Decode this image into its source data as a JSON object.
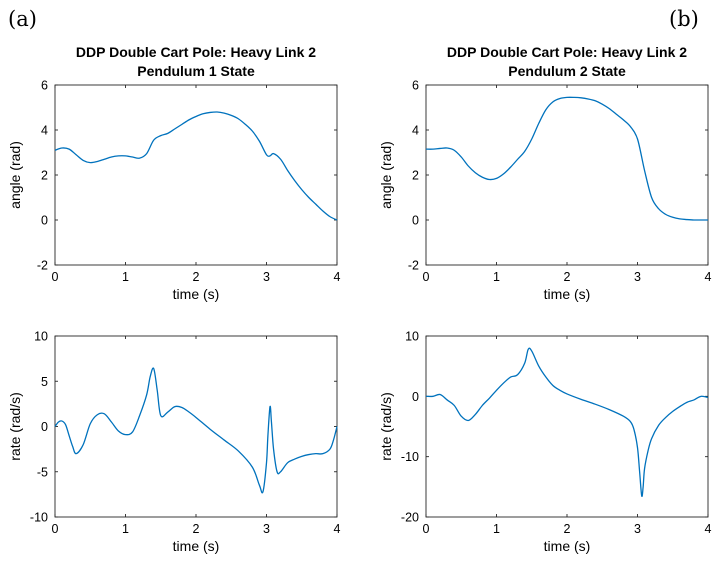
{
  "panel_labels": {
    "left": "(a)",
    "right": "(b)"
  },
  "titles": {
    "left": [
      "DDP Double Cart Pole: Heavy Link 2",
      "Pendulum 1 State"
    ],
    "right": [
      "DDP Double Cart Pole: Heavy Link 2",
      "Pendulum 2 State"
    ]
  },
  "colors": {
    "line": "#0072BD",
    "axes": "#262626"
  },
  "chart_data": [
    {
      "type": "line",
      "title": "DDP Double Cart Pole: Heavy Link 2 Pendulum 1 State",
      "xlabel": "time (s)",
      "ylabel": "angle (rad)",
      "xlim": [
        0,
        4
      ],
      "ylim": [
        -2,
        6
      ],
      "xticks": [
        0,
        1,
        2,
        3,
        4
      ],
      "yticks": [
        -2,
        0,
        2,
        4,
        6
      ],
      "grid": false,
      "x": [
        0,
        0.1,
        0.2,
        0.3,
        0.4,
        0.5,
        0.6,
        0.7,
        0.8,
        0.9,
        1.0,
        1.1,
        1.2,
        1.3,
        1.4,
        1.5,
        1.6,
        1.7,
        1.8,
        1.9,
        2.0,
        2.1,
        2.2,
        2.3,
        2.4,
        2.5,
        2.6,
        2.7,
        2.8,
        2.9,
        3.0,
        3.05,
        3.1,
        3.2,
        3.3,
        3.4,
        3.5,
        3.6,
        3.7,
        3.8,
        3.9,
        4.0
      ],
      "y": [
        3.1,
        3.2,
        3.15,
        2.9,
        2.65,
        2.55,
        2.6,
        2.7,
        2.8,
        2.85,
        2.85,
        2.8,
        2.75,
        2.95,
        3.55,
        3.75,
        3.85,
        4.05,
        4.25,
        4.45,
        4.6,
        4.72,
        4.78,
        4.8,
        4.75,
        4.65,
        4.5,
        4.25,
        3.95,
        3.5,
        2.9,
        2.85,
        2.95,
        2.7,
        2.2,
        1.75,
        1.35,
        1.0,
        0.7,
        0.4,
        0.15,
        0.0
      ]
    },
    {
      "type": "line",
      "title": "DDP Double Cart Pole: Heavy Link 2 Pendulum 2 State",
      "xlabel": "time (s)",
      "ylabel": "angle (rad)",
      "xlim": [
        0,
        4
      ],
      "ylim": [
        -2,
        6
      ],
      "xticks": [
        0,
        1,
        2,
        3,
        4
      ],
      "yticks": [
        -2,
        0,
        2,
        4,
        6
      ],
      "grid": false,
      "x": [
        0,
        0.1,
        0.2,
        0.3,
        0.4,
        0.5,
        0.6,
        0.7,
        0.8,
        0.9,
        1.0,
        1.1,
        1.2,
        1.3,
        1.4,
        1.5,
        1.6,
        1.7,
        1.8,
        1.9,
        2.0,
        2.1,
        2.2,
        2.3,
        2.4,
        2.5,
        2.6,
        2.7,
        2.8,
        2.9,
        3.0,
        3.1,
        3.2,
        3.3,
        3.4,
        3.5,
        3.6,
        3.7,
        3.8,
        3.9,
        4.0
      ],
      "y": [
        3.15,
        3.15,
        3.18,
        3.2,
        3.1,
        2.8,
        2.4,
        2.1,
        1.9,
        1.8,
        1.85,
        2.05,
        2.35,
        2.7,
        3.05,
        3.6,
        4.3,
        4.9,
        5.25,
        5.4,
        5.45,
        5.45,
        5.43,
        5.38,
        5.3,
        5.15,
        4.95,
        4.7,
        4.45,
        4.15,
        3.6,
        2.2,
        1.0,
        0.5,
        0.25,
        0.12,
        0.05,
        0.02,
        0.0,
        0.0,
        0.0
      ]
    },
    {
      "type": "line",
      "title": "",
      "xlabel": "time (s)",
      "ylabel": "rate (rad/s)",
      "xlim": [
        0,
        4
      ],
      "ylim": [
        -10,
        10
      ],
      "xticks": [
        0,
        1,
        2,
        3,
        4
      ],
      "yticks": [
        -10,
        -5,
        0,
        5,
        10
      ],
      "grid": false,
      "x": [
        0,
        0.05,
        0.1,
        0.15,
        0.2,
        0.25,
        0.3,
        0.4,
        0.5,
        0.6,
        0.7,
        0.8,
        0.9,
        1.0,
        1.1,
        1.2,
        1.3,
        1.35,
        1.4,
        1.45,
        1.5,
        1.6,
        1.7,
        1.8,
        1.9,
        2.0,
        2.2,
        2.4,
        2.6,
        2.8,
        2.9,
        2.95,
        3.0,
        3.02,
        3.05,
        3.07,
        3.1,
        3.15,
        3.2,
        3.3,
        3.4,
        3.5,
        3.6,
        3.7,
        3.8,
        3.9,
        3.95,
        4.0
      ],
      "y": [
        0.0,
        0.5,
        0.6,
        0.2,
        -1.0,
        -2.2,
        -3.0,
        -2.0,
        0.3,
        1.3,
        1.4,
        0.5,
        -0.5,
        -0.9,
        -0.6,
        1.2,
        3.5,
        5.5,
        6.4,
        4.0,
        1.2,
        1.6,
        2.2,
        2.1,
        1.6,
        1.0,
        -0.3,
        -1.5,
        -2.7,
        -4.5,
        -6.5,
        -7.2,
        -4.0,
        -1.0,
        2.2,
        0.5,
        -2.5,
        -5.0,
        -5.0,
        -4.0,
        -3.6,
        -3.3,
        -3.1,
        -3.0,
        -3.0,
        -2.5,
        -1.5,
        0.0
      ]
    },
    {
      "type": "line",
      "title": "",
      "xlabel": "time (s)",
      "ylabel": "rate (rad/s)",
      "xlim": [
        0,
        4
      ],
      "ylim": [
        -20,
        10
      ],
      "xticks": [
        0,
        1,
        2,
        3,
        4
      ],
      "yticks": [
        -20,
        -10,
        0,
        10
      ],
      "grid": false,
      "x": [
        0,
        0.1,
        0.2,
        0.3,
        0.4,
        0.5,
        0.6,
        0.7,
        0.8,
        0.9,
        1.0,
        1.1,
        1.2,
        1.3,
        1.4,
        1.45,
        1.5,
        1.6,
        1.7,
        1.8,
        1.9,
        2.0,
        2.2,
        2.4,
        2.6,
        2.8,
        2.9,
        2.95,
        3.0,
        3.03,
        3.06,
        3.08,
        3.1,
        3.15,
        3.2,
        3.3,
        3.4,
        3.5,
        3.6,
        3.7,
        3.8,
        3.9,
        4.0
      ],
      "y": [
        0.0,
        0.0,
        0.3,
        -0.6,
        -1.5,
        -3.3,
        -4.0,
        -3.0,
        -1.5,
        -0.3,
        1.0,
        2.2,
        3.2,
        3.6,
        5.5,
        7.8,
        7.5,
        5.0,
        3.2,
        1.8,
        1.0,
        0.4,
        -0.5,
        -1.3,
        -2.2,
        -3.3,
        -4.2,
        -5.5,
        -8.5,
        -12.5,
        -16.5,
        -15.0,
        -12.0,
        -9.0,
        -7.0,
        -4.8,
        -3.5,
        -2.5,
        -1.7,
        -1.0,
        -0.6,
        0.0,
        -0.2
      ]
    }
  ]
}
